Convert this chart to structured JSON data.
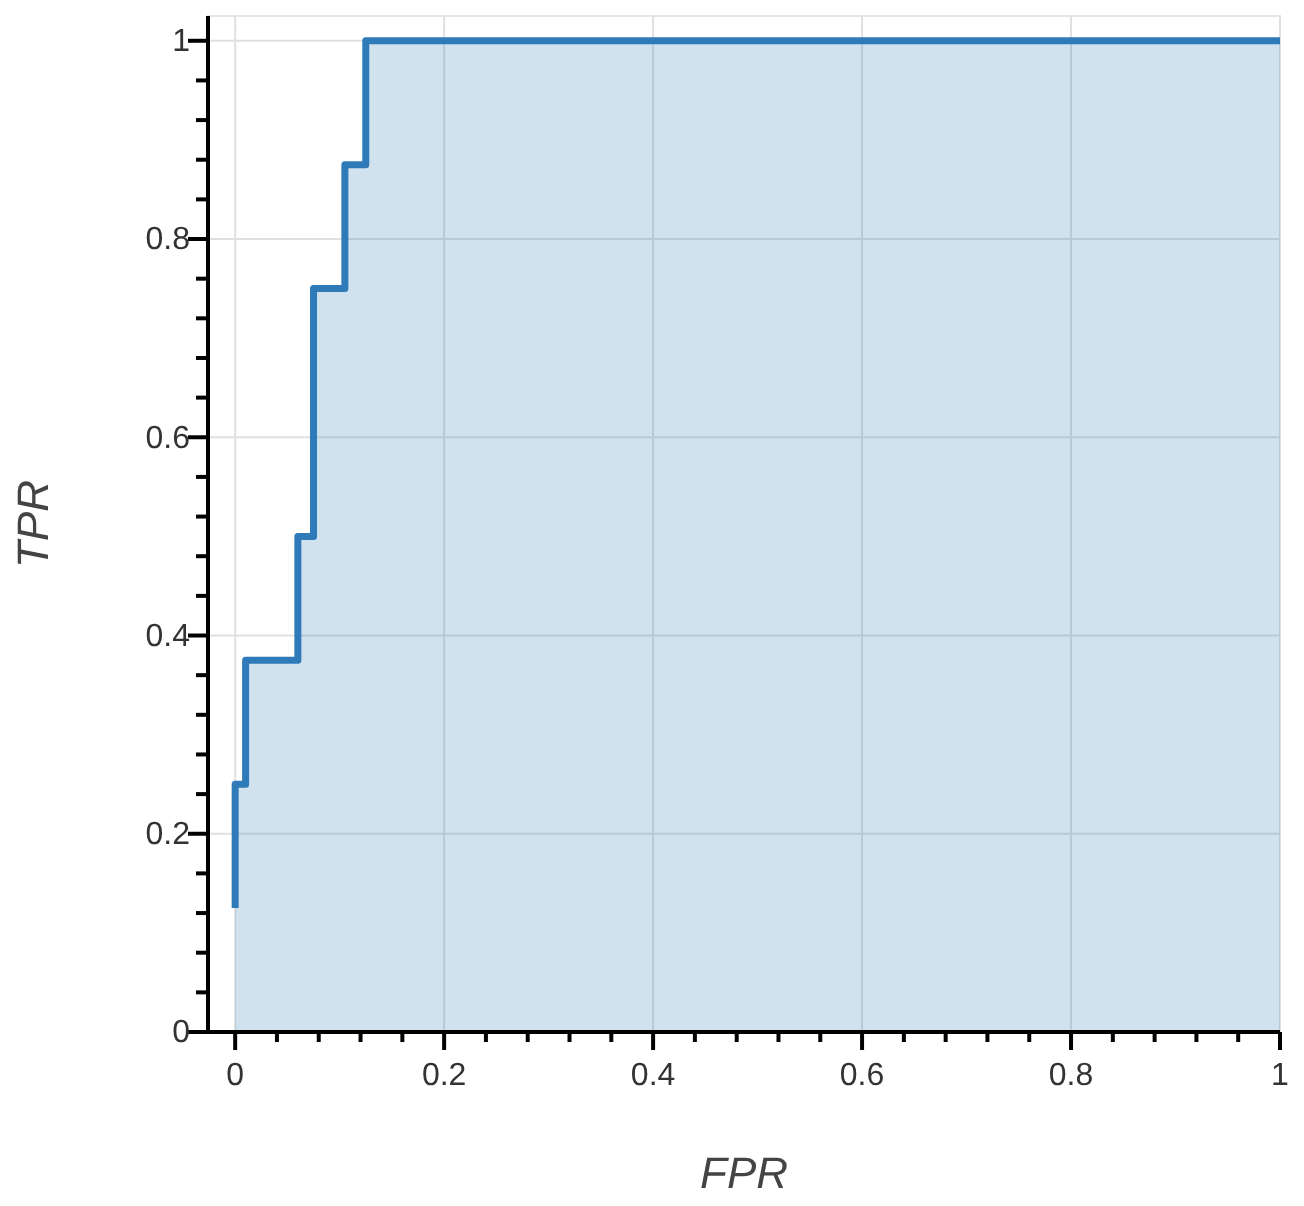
{
  "chart_data": {
    "type": "area",
    "xlabel": "FPR",
    "ylabel": "TPR",
    "line_style": "solid",
    "marker": "none",
    "grid": true,
    "xlim": [
      -0.026,
      1
    ],
    "ylim": [
      0,
      1.025
    ],
    "xticks": [
      0,
      {
        "value": 0.04,
        "label": null
      },
      {
        "value": 0.08,
        "label": null
      },
      {
        "value": 0.12,
        "label": null
      },
      {
        "value": 0.16,
        "label": null
      },
      0.2,
      {
        "value": 0.24,
        "label": null
      },
      {
        "value": 0.28,
        "label": null
      },
      {
        "value": 0.32,
        "label": null
      },
      {
        "value": 0.36,
        "label": null
      },
      0.4,
      {
        "value": 0.44,
        "label": null
      },
      {
        "value": 0.48,
        "label": null
      },
      {
        "value": 0.52,
        "label": null
      },
      {
        "value": 0.56,
        "label": null
      },
      0.6,
      {
        "value": 0.64,
        "label": null
      },
      {
        "value": 0.68,
        "label": null
      },
      {
        "value": 0.72,
        "label": null
      },
      {
        "value": 0.76,
        "label": null
      },
      0.8,
      {
        "value": 0.84,
        "label": null
      },
      {
        "value": 0.88,
        "label": null
      },
      {
        "value": 0.92,
        "label": null
      },
      {
        "value": 0.96,
        "label": null
      },
      1
    ],
    "yticks": [
      0,
      {
        "value": 0.04,
        "label": null
      },
      {
        "value": 0.08,
        "label": null
      },
      {
        "value": 0.12,
        "label": null
      },
      {
        "value": 0.16,
        "label": null
      },
      0.2,
      {
        "value": 0.24,
        "label": null
      },
      {
        "value": 0.28,
        "label": null
      },
      {
        "value": 0.32,
        "label": null
      },
      {
        "value": 0.36,
        "label": null
      },
      0.4,
      {
        "value": 0.44,
        "label": null
      },
      {
        "value": 0.48,
        "label": null
      },
      {
        "value": 0.52,
        "label": null
      },
      {
        "value": 0.56,
        "label": null
      },
      0.6,
      {
        "value": 0.64,
        "label": null
      },
      {
        "value": 0.68,
        "label": null
      },
      {
        "value": 0.72,
        "label": null
      },
      {
        "value": 0.76,
        "label": null
      },
      0.8,
      {
        "value": 0.84,
        "label": null
      },
      {
        "value": 0.88,
        "label": null
      },
      {
        "value": 0.92,
        "label": null
      },
      {
        "value": 0.96,
        "label": null
      },
      1
    ],
    "series": [
      {
        "type": "step",
        "color": "#2f7ab8",
        "x": [
          0,
          0,
          0.01,
          0.06,
          0.075,
          0.105,
          0.125,
          1
        ],
        "values": [
          0.125,
          0.25,
          0.375,
          0.5,
          0.75,
          0.875,
          1,
          1
        ]
      }
    ]
  }
}
